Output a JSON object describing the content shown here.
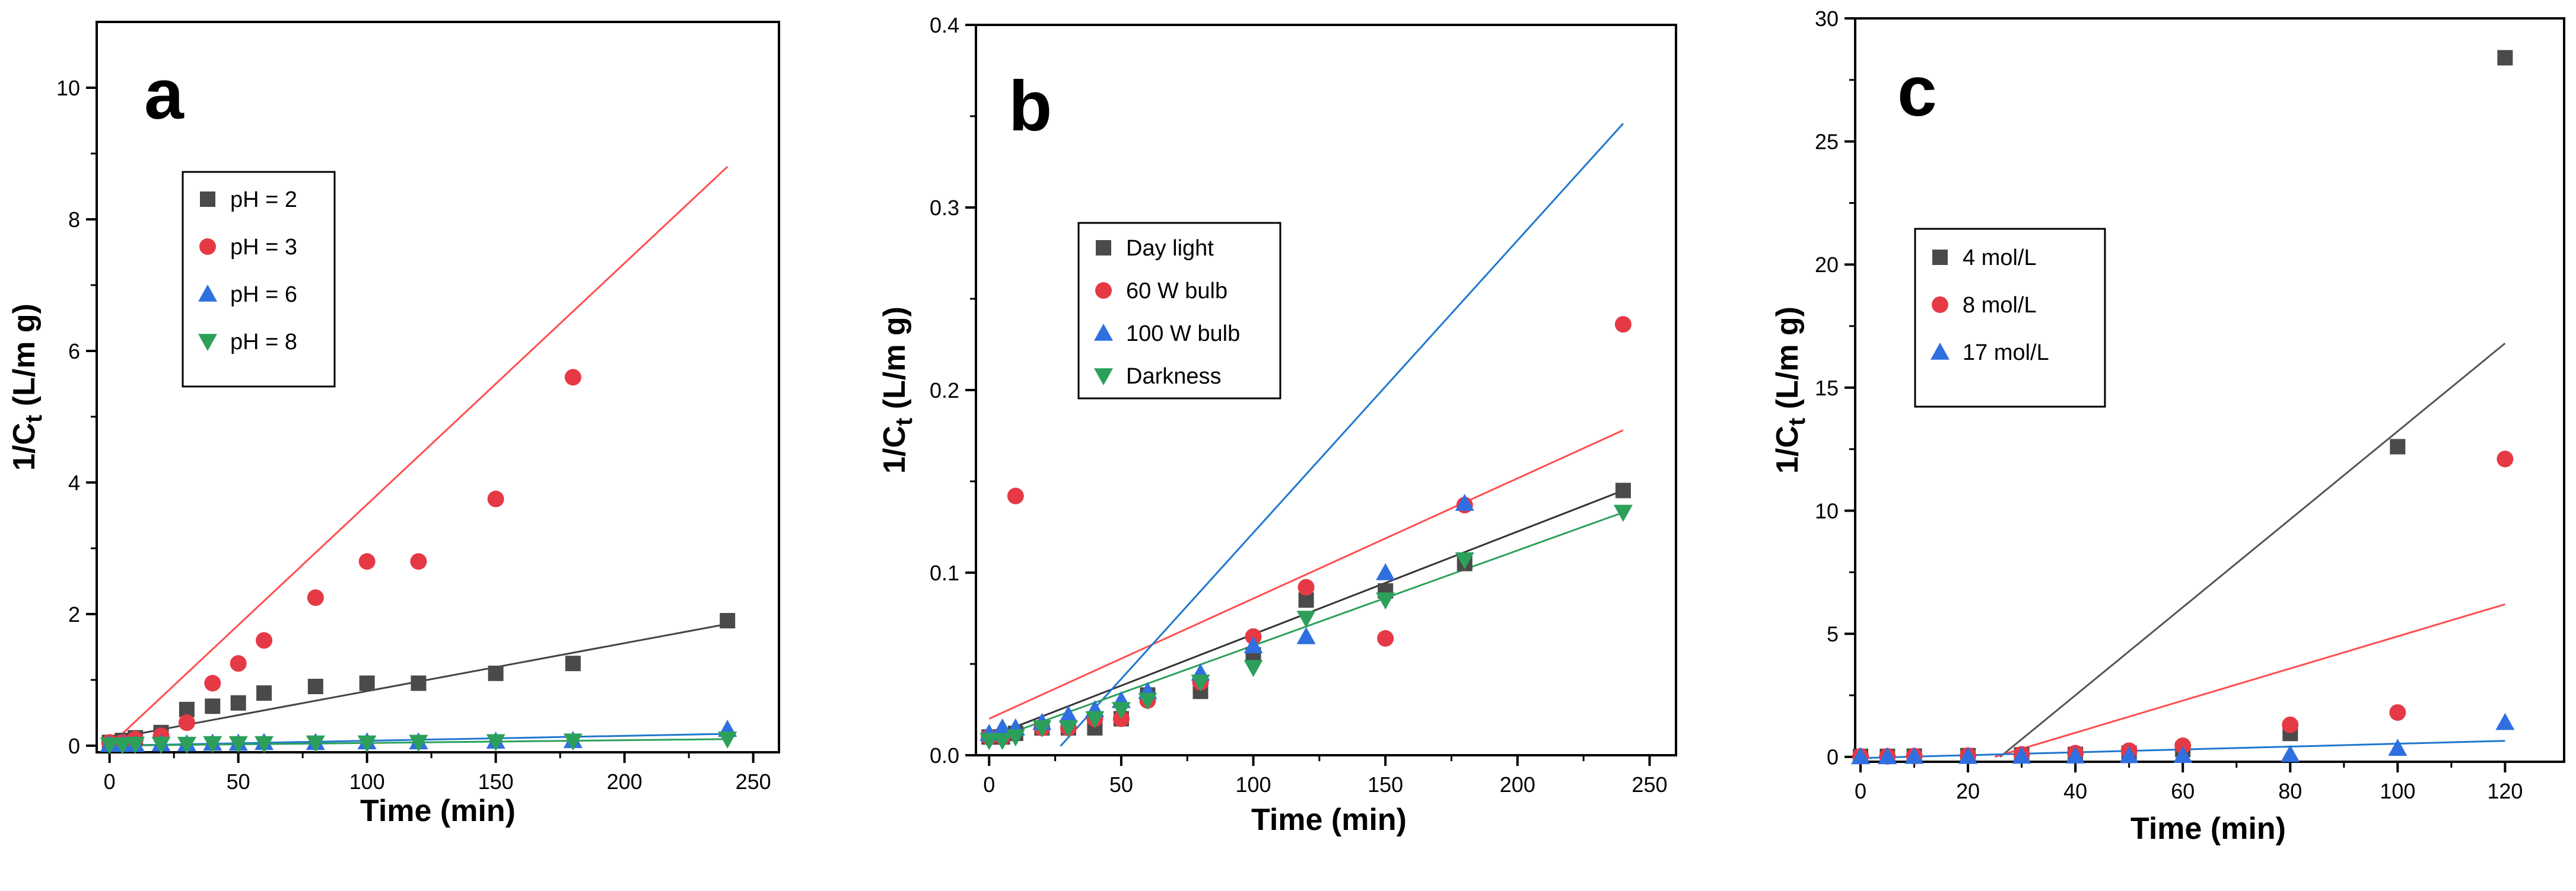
{
  "chart_data": [
    {
      "type": "scatter",
      "panel_label": "a",
      "xlabel": "Time (min)",
      "ylabel": "1/C",
      "ylabel_sub": "t",
      "ylabel_unit": " (L/m g)",
      "xlim": [
        -5,
        260
      ],
      "ylim": [
        -0.1,
        11
      ],
      "xticks": [
        0,
        50,
        100,
        150,
        200,
        250
      ],
      "yticks": [
        0,
        2,
        4,
        6,
        8,
        10
      ],
      "legend_position": "upper-left",
      "series": [
        {
          "name": "pH = 2",
          "marker": "square",
          "color": "#4a4a4a",
          "line_color": "#444444",
          "x": [
            0,
            5,
            10,
            20,
            30,
            40,
            50,
            60,
            80,
            100,
            120,
            150,
            180,
            240
          ],
          "y": [
            0.05,
            0.08,
            0.12,
            0.2,
            0.55,
            0.6,
            0.65,
            0.8,
            0.9,
            0.95,
            0.95,
            1.1,
            1.25,
            1.9
          ],
          "fit": [
            [
              0,
              0.1
            ],
            [
              240,
              1.85
            ]
          ]
        },
        {
          "name": "pH = 3",
          "marker": "circle",
          "color": "#e63946",
          "line_color": "#ff4d4d",
          "x": [
            0,
            5,
            10,
            20,
            30,
            40,
            50,
            60,
            80,
            100,
            120,
            150,
            180
          ],
          "y": [
            0.05,
            0.05,
            0.1,
            0.15,
            0.35,
            0.95,
            1.25,
            1.6,
            2.25,
            2.8,
            2.8,
            3.75,
            5.6
          ],
          "fit": [
            [
              0,
              0.0
            ],
            [
              240,
              8.8
            ]
          ]
        },
        {
          "name": "pH = 6",
          "marker": "triangle-up",
          "color": "#2f6fe0",
          "line_color": "#1f77d0",
          "x": [
            0,
            5,
            10,
            20,
            30,
            40,
            50,
            60,
            80,
            100,
            120,
            150,
            180,
            240
          ],
          "y": [
            0.02,
            0.02,
            0.02,
            0.03,
            0.03,
            0.04,
            0.04,
            0.05,
            0.05,
            0.06,
            0.06,
            0.07,
            0.08,
            0.25
          ],
          "fit": [
            [
              0,
              0.0
            ],
            [
              240,
              0.18
            ]
          ]
        },
        {
          "name": "pH = 8",
          "marker": "triangle-down",
          "color": "#2ca05a",
          "line_color": "#2ca05a",
          "x": [
            0,
            5,
            10,
            20,
            30,
            40,
            50,
            60,
            80,
            100,
            120,
            150,
            180,
            240
          ],
          "y": [
            0.01,
            0.01,
            0.02,
            0.02,
            0.02,
            0.03,
            0.03,
            0.03,
            0.04,
            0.04,
            0.05,
            0.06,
            0.07,
            0.1
          ],
          "fit": [
            [
              0,
              0.0
            ],
            [
              240,
              0.1
            ]
          ]
        }
      ]
    },
    {
      "type": "scatter",
      "panel_label": "b",
      "xlabel": "Time (min)",
      "ylabel": "1/C",
      "ylabel_sub": "t",
      "ylabel_unit": " (L/m g)",
      "xlim": [
        -5,
        260
      ],
      "ylim": [
        0,
        0.4
      ],
      "xticks": [
        0,
        50,
        100,
        150,
        200,
        250
      ],
      "yticks": [
        0.0,
        0.1,
        0.2,
        0.3,
        0.4
      ],
      "ytick_labels": [
        "0.0",
        "0.1",
        "0.2",
        "0.3",
        "0.4"
      ],
      "legend_position": "upper-left",
      "series": [
        {
          "name": "Day light",
          "marker": "square",
          "color": "#4a4a4a",
          "line_color": "#333333",
          "x": [
            0,
            5,
            10,
            20,
            30,
            40,
            50,
            60,
            80,
            100,
            120,
            150,
            180,
            240
          ],
          "y": [
            0.01,
            0.01,
            0.012,
            0.015,
            0.015,
            0.015,
            0.02,
            0.033,
            0.035,
            0.055,
            0.085,
            0.09,
            0.105,
            0.145
          ],
          "fit": [
            [
              0,
              0.01
            ],
            [
              240,
              0.145
            ]
          ]
        },
        {
          "name": "60 W bulb",
          "marker": "circle",
          "color": "#e63946",
          "line_color": "#ff4d4d",
          "x": [
            0,
            5,
            10,
            20,
            30,
            40,
            50,
            60,
            80,
            100,
            120,
            150,
            180,
            240
          ],
          "y": [
            0.01,
            0.01,
            0.142,
            0.015,
            0.015,
            0.02,
            0.02,
            0.03,
            0.04,
            0.065,
            0.092,
            0.064,
            0.137,
            0.236
          ],
          "fit": [
            [
              0,
              0.02
            ],
            [
              240,
              0.178
            ]
          ]
        },
        {
          "name": "100 W bulb",
          "marker": "triangle-up",
          "color": "#2f6fe0",
          "line_color": "#1f77d0",
          "x": [
            0,
            5,
            10,
            20,
            30,
            40,
            50,
            60,
            80,
            100,
            120,
            150,
            180
          ],
          "y": [
            0.012,
            0.015,
            0.015,
            0.018,
            0.022,
            0.025,
            0.03,
            0.035,
            0.045,
            0.06,
            0.065,
            0.1,
            0.138
          ],
          "fit": [
            [
              27,
              0.005
            ],
            [
              240,
              0.346
            ]
          ]
        },
        {
          "name": "Darkness",
          "marker": "triangle-down",
          "color": "#2ca05a",
          "line_color": "#2ca05a",
          "x": [
            0,
            5,
            10,
            20,
            30,
            40,
            50,
            60,
            80,
            100,
            120,
            150,
            180,
            240
          ],
          "y": [
            0.008,
            0.008,
            0.01,
            0.015,
            0.015,
            0.02,
            0.025,
            0.03,
            0.04,
            0.048,
            0.075,
            0.085,
            0.107,
            0.133
          ],
          "fit": [
            [
              0,
              0.008
            ],
            [
              240,
              0.133
            ]
          ]
        }
      ]
    },
    {
      "type": "scatter",
      "panel_label": "c",
      "xlabel": "Time (min)",
      "ylabel": "1/C",
      "ylabel_sub": "t",
      "ylabel_unit": " (L/m g)",
      "xlim": [
        -1,
        131
      ],
      "ylim": [
        -0.2,
        30
      ],
      "xticks": [
        0,
        20,
        40,
        60,
        80,
        100,
        120
      ],
      "yticks": [
        0,
        5,
        10,
        15,
        20,
        25,
        30
      ],
      "legend_position": "upper-left",
      "series": [
        {
          "name": "4 mol/L",
          "marker": "square",
          "color": "#4a4a4a",
          "line_color": "#555555",
          "x": [
            0,
            5,
            10,
            20,
            30,
            40,
            50,
            60,
            80,
            100,
            120
          ],
          "y": [
            0.02,
            0.02,
            0.03,
            0.05,
            0.08,
            0.1,
            0.15,
            0.3,
            0.95,
            12.6,
            28.4
          ],
          "fit": [
            [
              26,
              0
            ],
            [
              120,
              16.8
            ]
          ]
        },
        {
          "name": "8 mol/L",
          "marker": "circle",
          "color": "#e63946",
          "line_color": "#ff4d4d",
          "x": [
            0,
            5,
            10,
            20,
            30,
            40,
            50,
            60,
            80,
            100,
            120
          ],
          "y": [
            0.02,
            0.02,
            0.03,
            0.05,
            0.1,
            0.15,
            0.25,
            0.45,
            1.3,
            1.8,
            12.1
          ],
          "fit": [
            [
              25,
              0
            ],
            [
              120,
              6.2
            ]
          ]
        },
        {
          "name": "17 mol/L",
          "marker": "triangle-up",
          "color": "#2f6fe0",
          "line_color": "#1f77d0",
          "x": [
            0,
            5,
            10,
            20,
            30,
            40,
            50,
            60,
            80,
            100,
            120
          ],
          "y": [
            0.01,
            0.01,
            0.02,
            0.02,
            0.03,
            0.04,
            0.05,
            0.06,
            0.1,
            0.35,
            1.4
          ],
          "fit": [
            [
              0,
              -0.05
            ],
            [
              120,
              0.65
            ]
          ]
        }
      ]
    }
  ]
}
